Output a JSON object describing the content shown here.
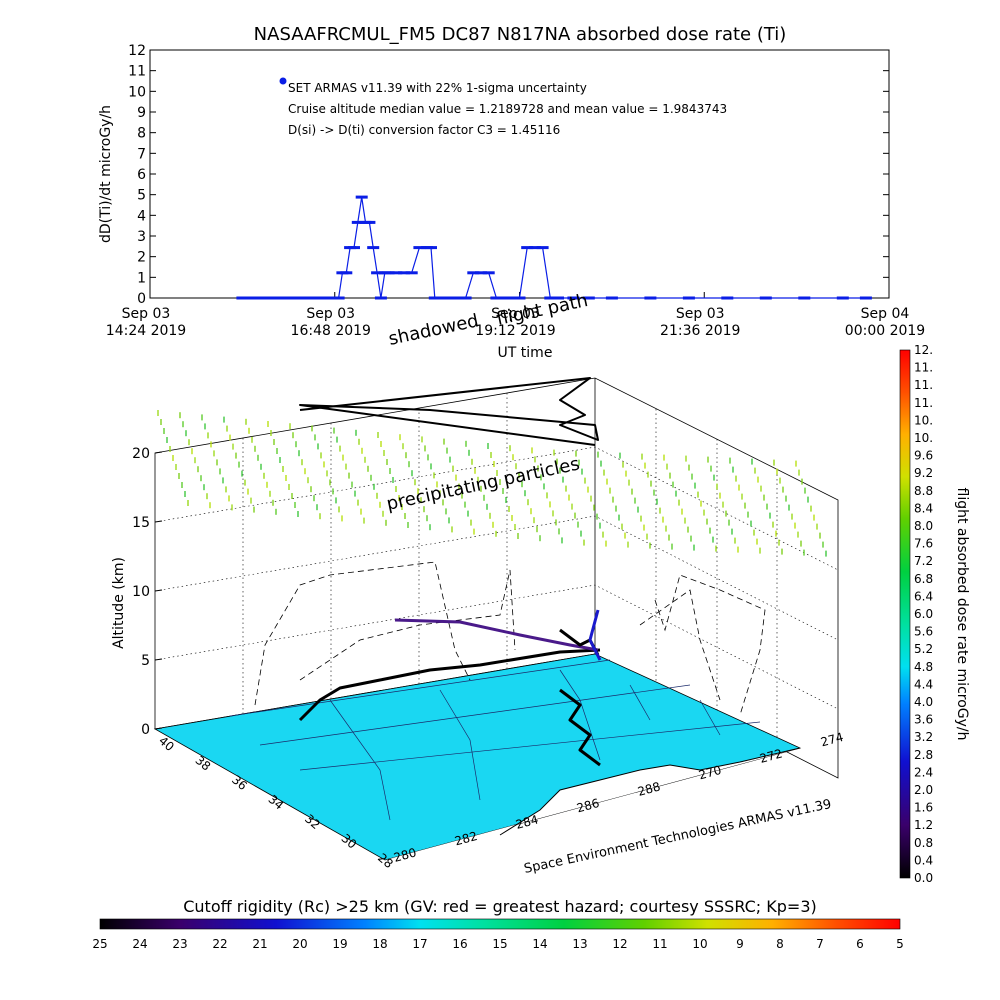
{
  "title": "NASAAFRCMUL_FM5 DC87 N817NA absorbed dose rate (Ti)",
  "chart_data": [
    {
      "type": "line",
      "title": "NASAAFRCMUL_FM5 DC87 N817NA absorbed dose rate (Ti)",
      "ylabel": "dD(Ti)/dt microGy/h",
      "xlabel": "UT time",
      "ylim": [
        0,
        12
      ],
      "yticks": [
        "0",
        "1",
        "2",
        "3",
        "4",
        "5",
        "6",
        "7",
        "8",
        "9",
        "10",
        "11",
        "12"
      ],
      "xticks": [
        {
          "l1": "Sep 03",
          "l2": "14:24 2019",
          "h": 0
        },
        {
          "l1": "Sep 03",
          "l2": "16:48 2019",
          "h": 2.4
        },
        {
          "l1": "Sep 03",
          "l2": "19:12 2019",
          "h": 4.8
        },
        {
          "l1": "Sep 03",
          "l2": "21:36 2019",
          "h": 7.2
        },
        {
          "l1": "Sep 04",
          "l2": "00:00 2019",
          "h": 9.6
        }
      ],
      "annotations": [
        "SET ARMAS v11.39 with 22% 1-sigma uncertainty",
        "Cruise altitude median value = 1.2189728 and mean value = 1.9843743",
        "D(si) -> D(ti) conversion factor C3 = 1.45116"
      ],
      "series": [
        {
          "color": "#0a1ee6",
          "x": [
            1.2,
            1.3,
            1.4,
            1.5,
            1.6,
            1.7,
            1.8,
            1.9,
            2.0,
            2.1,
            2.2,
            2.3,
            2.4,
            2.45,
            2.5,
            2.55,
            2.6,
            2.65,
            2.7,
            2.75,
            2.8,
            2.85,
            2.9,
            2.95,
            3.0,
            3.05,
            3.1,
            3.2,
            3.3,
            3.4,
            3.5,
            3.6,
            3.65,
            3.7,
            3.8,
            3.9,
            4.0,
            4.1,
            4.2,
            4.3,
            4.4,
            4.5,
            4.6,
            4.7,
            4.8,
            4.9,
            5.0,
            5.1,
            5.2,
            5.3,
            5.5,
            5.7,
            6.0,
            6.5,
            7.0,
            7.5,
            8.0,
            8.5,
            9.0,
            9.3
          ],
          "y": [
            0,
            0,
            0,
            0,
            0,
            0,
            0,
            0,
            0,
            0,
            0,
            0,
            0,
            0,
            1.22,
            1.22,
            2.44,
            2.44,
            3.66,
            4.88,
            3.66,
            3.66,
            2.44,
            1.22,
            0,
            1.22,
            1.22,
            1.22,
            1.22,
            1.22,
            2.44,
            2.44,
            2.44,
            0,
            0,
            0,
            0,
            0,
            1.22,
            1.22,
            1.22,
            0,
            0,
            0,
            0,
            2.44,
            2.44,
            2.44,
            0,
            0,
            0,
            0,
            0,
            0,
            0,
            0,
            0,
            0,
            0,
            0
          ]
        }
      ]
    },
    {
      "type": "scatter",
      "title": "",
      "zlabel": "Altitude (km)",
      "zlim": [
        0,
        20
      ],
      "zticks": [
        "0",
        "5",
        "10",
        "15",
        "20"
      ],
      "lat_ticks": [
        "40",
        "38",
        "36",
        "34",
        "32",
        "30",
        "28"
      ],
      "lon_ticks": [
        "280",
        "282",
        "284",
        "286",
        "288",
        "270",
        "272",
        "274"
      ],
      "labels": [
        "shadowed",
        "flight path",
        "precipitating particles"
      ],
      "footer": "Space Environment Technologies ARMAS v11.39",
      "colorbar_label": "flight absorbed dose rate microGy/h",
      "colorbar_ticks": [
        "0.0",
        "0.4",
        "0.8",
        "1.2",
        "1.6",
        "2.0",
        "2.4",
        "2.8",
        "3.2",
        "3.6",
        "4.0",
        "4.4",
        "4.8",
        "5.2",
        "5.6",
        "6.0",
        "6.4",
        "6.8",
        "7.2",
        "7.6",
        "8.0",
        "8.4",
        "8.8",
        "9.2",
        "9.6",
        "10.",
        "10.",
        "11.",
        "11.",
        "11.",
        "12."
      ],
      "cutoff_title": "Cutoff rigidity (Rc) >25 km (GV: red = greatest hazard; courtesy SSSRC; Kp=3)",
      "cutoff_ticks": [
        "25",
        "24",
        "23",
        "22",
        "21",
        "20",
        "19",
        "18",
        "17",
        "16",
        "15",
        "14",
        "13",
        "12",
        "11",
        "10",
        "9",
        "8",
        "7",
        "6",
        "5"
      ]
    }
  ]
}
